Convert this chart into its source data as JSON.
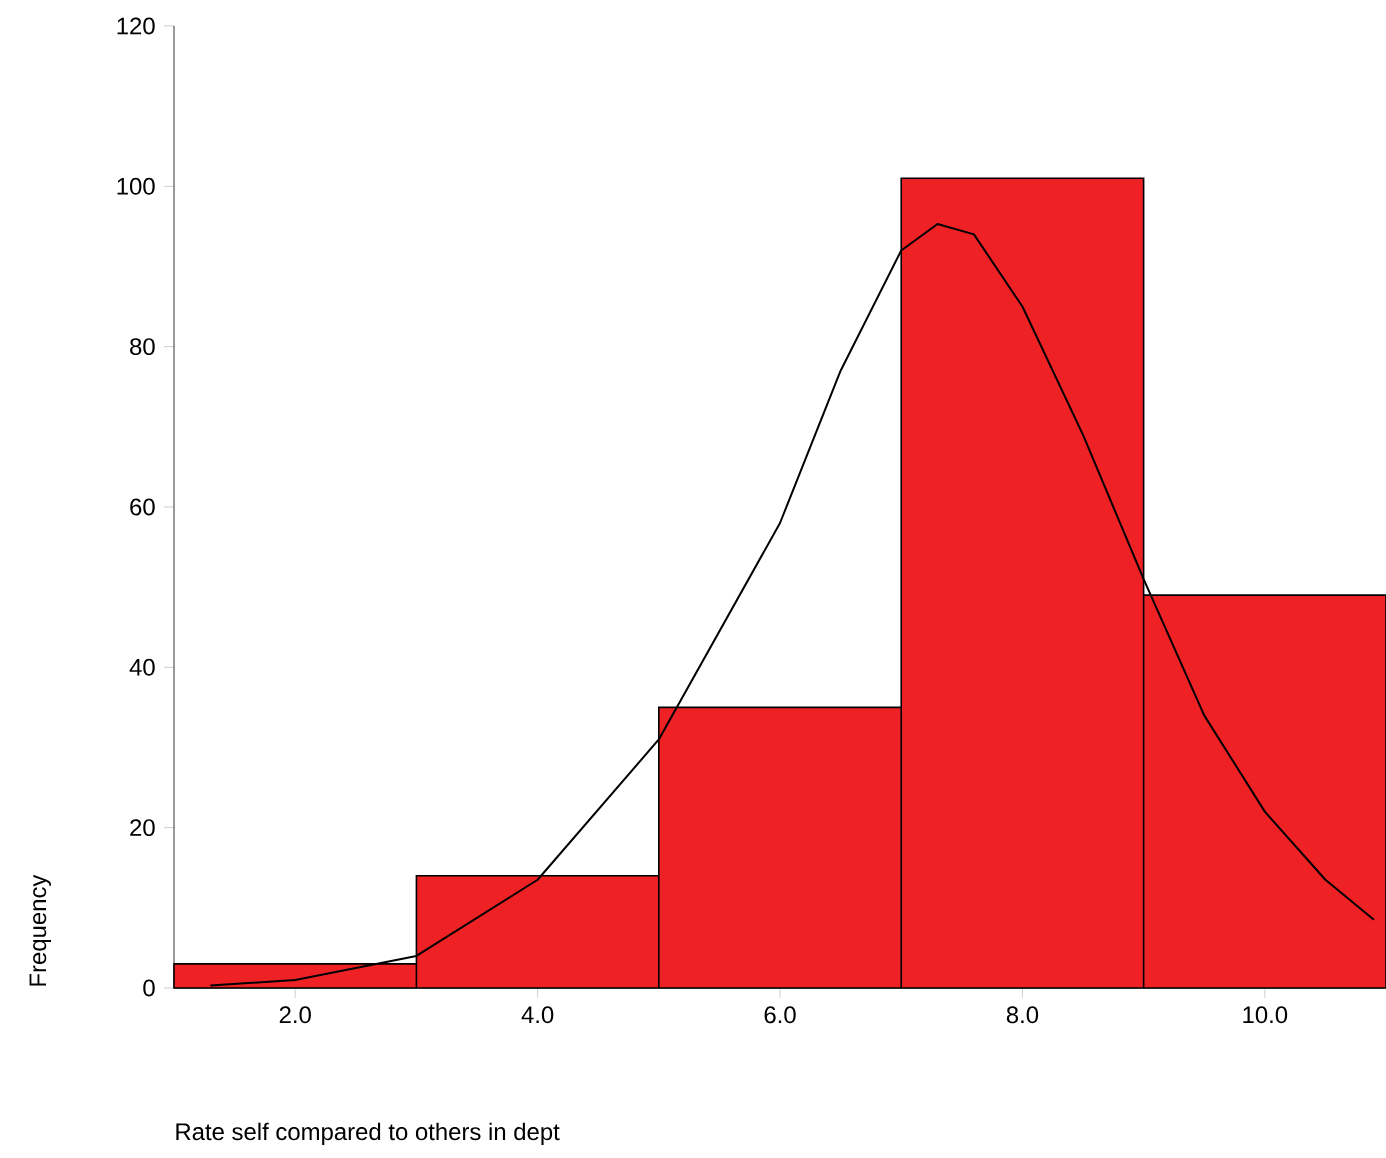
{
  "chart_data": {
    "type": "histogram",
    "xlabel": "Rate self compared to others in dept",
    "ylabel": "Frequency",
    "series": [
      {
        "bins": [
          1,
          3,
          5,
          7,
          9,
          11
        ],
        "values": [
          3,
          14,
          35,
          101,
          49
        ],
        "color": "#ee2224"
      },
      {
        "type": "line",
        "color": "#000000",
        "x": [
          1.3,
          2,
          3,
          4,
          5,
          6,
          6.5,
          7,
          7.3,
          7.6,
          8,
          8.5,
          9,
          9.5,
          10,
          10.5,
          10.9
        ],
        "values": [
          0.3,
          1,
          4,
          13.5,
          31,
          58,
          77,
          92,
          95.3,
          94,
          85,
          69,
          51,
          34,
          22,
          13.5,
          8.5
        ]
      }
    ],
    "xlim": [
      1,
      11
    ],
    "ylim": [
      0,
      120
    ],
    "xticks": [
      {
        "value": 2,
        "label": "2.0"
      },
      {
        "value": 4,
        "label": "4.0"
      },
      {
        "value": 6,
        "label": "6.0"
      },
      {
        "value": 8,
        "label": "8.0"
      },
      {
        "value": 10,
        "label": "10.0"
      }
    ],
    "yticks": [
      0,
      20,
      40,
      60,
      80,
      100,
      120
    ],
    "grid": false
  }
}
